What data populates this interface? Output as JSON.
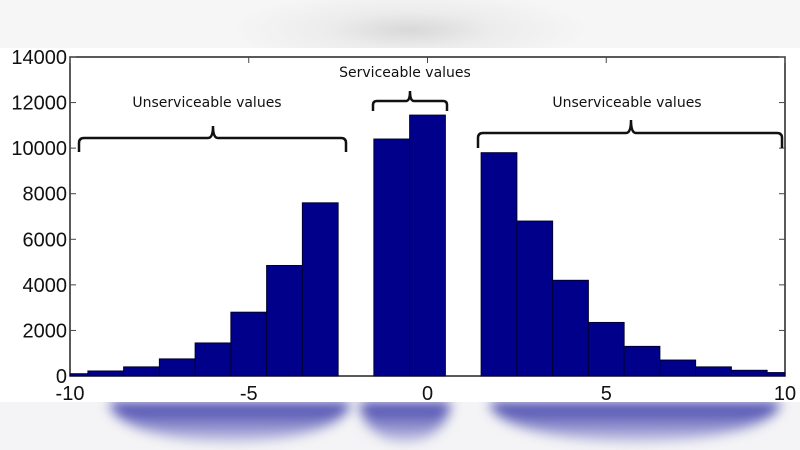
{
  "chart_data": {
    "type": "bar",
    "title": "",
    "xlabel": "",
    "ylabel": "",
    "xlim": [
      -10,
      10
    ],
    "ylim": [
      0,
      14000
    ],
    "grid": false,
    "legend": null,
    "x_ticks": [
      "-10",
      "-5",
      "0",
      "5",
      "10"
    ],
    "y_ticks": [
      "0",
      "2000",
      "4000",
      "6000",
      "8000",
      "10000",
      "12000",
      "14000"
    ],
    "bar_color": "#00008B",
    "bins": [
      {
        "x0": -10.0,
        "x1": -9.5,
        "value": 100,
        "group": "unserviceable-left"
      },
      {
        "x0": -9.5,
        "x1": -8.5,
        "value": 220,
        "group": "unserviceable-left"
      },
      {
        "x0": -8.5,
        "x1": -7.5,
        "value": 400,
        "group": "unserviceable-left"
      },
      {
        "x0": -7.5,
        "x1": -6.5,
        "value": 750,
        "group": "unserviceable-left"
      },
      {
        "x0": -6.5,
        "x1": -5.5,
        "value": 1450,
        "group": "unserviceable-left"
      },
      {
        "x0": -5.5,
        "x1": -4.5,
        "value": 2800,
        "group": "unserviceable-left"
      },
      {
        "x0": -4.5,
        "x1": -3.5,
        "value": 4850,
        "group": "unserviceable-left"
      },
      {
        "x0": -3.5,
        "x1": -2.5,
        "value": 7600,
        "group": "unserviceable-left"
      },
      {
        "x0": -1.5,
        "x1": -0.5,
        "value": 10400,
        "group": "serviceable"
      },
      {
        "x0": -0.5,
        "x1": 0.5,
        "value": 11450,
        "group": "serviceable"
      },
      {
        "x0": 1.5,
        "x1": 2.5,
        "value": 9800,
        "group": "unserviceable-right"
      },
      {
        "x0": 2.5,
        "x1": 3.5,
        "value": 6800,
        "group": "unserviceable-right"
      },
      {
        "x0": 3.5,
        "x1": 4.5,
        "value": 4200,
        "group": "unserviceable-right"
      },
      {
        "x0": 4.5,
        "x1": 5.5,
        "value": 2350,
        "group": "unserviceable-right"
      },
      {
        "x0": 5.5,
        "x1": 6.5,
        "value": 1300,
        "group": "unserviceable-right"
      },
      {
        "x0": 6.5,
        "x1": 7.5,
        "value": 700,
        "group": "unserviceable-right"
      },
      {
        "x0": 7.5,
        "x1": 8.5,
        "value": 400,
        "group": "unserviceable-right"
      },
      {
        "x0": 8.5,
        "x1": 9.5,
        "value": 250,
        "group": "unserviceable-right"
      },
      {
        "x0": 9.5,
        "x1": 10.0,
        "value": 150,
        "group": "unserviceable-right"
      }
    ],
    "annotations": [
      {
        "text": "Unserviceable values",
        "bracket_x": [
          -9.5,
          -2.3
        ],
        "bracket_y": 10000
      },
      {
        "text": "Serviceable values",
        "bracket_x": [
          -1.6,
          0.55
        ],
        "bracket_y": 11900
      },
      {
        "text": "Unserviceable values",
        "bracket_x": [
          1.4,
          9.9
        ],
        "bracket_y": 10400
      }
    ]
  },
  "labels": {
    "annot_left": "Unserviceable values",
    "annot_center": "Serviceable values",
    "annot_right": "Unserviceable values"
  },
  "axis": {
    "y": [
      "0",
      "2000",
      "4000",
      "6000",
      "8000",
      "10000",
      "12000",
      "14000"
    ],
    "x": [
      "-10",
      "-5",
      "0",
      "5",
      "10"
    ]
  }
}
